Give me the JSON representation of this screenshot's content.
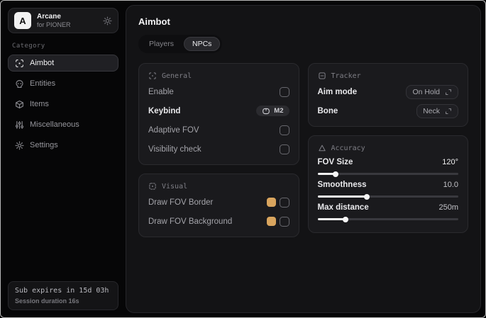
{
  "app": {
    "logo_letter": "A",
    "name": "Arcane",
    "subtitle": "for PIONER"
  },
  "sidebar": {
    "category_label": "Category",
    "items": [
      {
        "label": "Aimbot",
        "icon": "crosshair-scan-icon",
        "active": true
      },
      {
        "label": "Entities",
        "icon": "entities-icon",
        "active": false
      },
      {
        "label": "Items",
        "icon": "items-box-icon",
        "active": false
      },
      {
        "label": "Miscellaneous",
        "icon": "sliders-icon",
        "active": false
      },
      {
        "label": "Settings",
        "icon": "gear-icon",
        "active": false
      }
    ],
    "footer": {
      "sub_line": "Sub expires in 15d 03h",
      "session_line": "Session duration 16s"
    }
  },
  "main": {
    "title": "Aimbot",
    "tabs": [
      {
        "label": "Players",
        "active": false
      },
      {
        "label": "NPCs",
        "active": true
      }
    ],
    "general": {
      "title": "General",
      "rows": [
        {
          "label": "Enable",
          "control": "checkbox",
          "checked": false
        },
        {
          "label": "Keybind",
          "control": "keybind",
          "value": "M2"
        },
        {
          "label": "Adaptive FOV",
          "control": "checkbox",
          "checked": false
        },
        {
          "label": "Visibility check",
          "control": "checkbox",
          "checked": false
        }
      ]
    },
    "visual": {
      "title": "Visual",
      "rows": [
        {
          "label": "Draw FOV Border",
          "control": "color-checkbox",
          "color": "#d9a55e",
          "checked": false
        },
        {
          "label": "Draw FOV Background",
          "control": "color-checkbox",
          "color": "#d9a55e",
          "checked": false
        }
      ]
    },
    "tracker": {
      "title": "Tracker",
      "rows": [
        {
          "label": "Aim mode",
          "value": "On Hold"
        },
        {
          "label": "Bone",
          "value": "Neck"
        }
      ]
    },
    "accuracy": {
      "title": "Accuracy",
      "rows": [
        {
          "label": "FOV Size",
          "value": "120°",
          "fill": 13
        },
        {
          "label": "Smoothness",
          "value": "10.0",
          "fill": 35
        },
        {
          "label": "Max distance",
          "value": "250m",
          "fill": 20
        }
      ]
    }
  },
  "colors": {
    "accent_swatch": "#d9a55e",
    "slider_fill": "#f2f2f2"
  }
}
